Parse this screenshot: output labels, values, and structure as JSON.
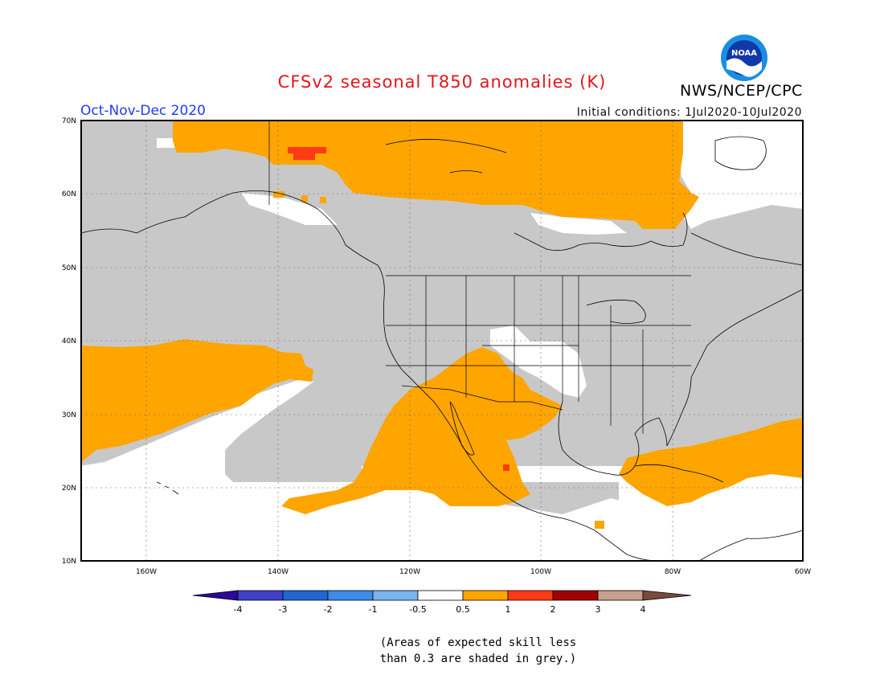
{
  "header": {
    "title": "CFSv2 seasonal T850 anomalies (K)",
    "season": "Oct-Nov-Dec 2020",
    "initial_conditions": "Initial conditions: 1Jul2020-10Jul2020",
    "agency": "NWS/NCEP/CPC",
    "logo_text": "NOAA"
  },
  "map": {
    "latitude_labels": [
      "70N",
      "60N",
      "50N",
      "40N",
      "30N",
      "20N",
      "10N"
    ],
    "longitude_labels": [
      "160W",
      "140W",
      "120W",
      "100W",
      "80W",
      "60W"
    ],
    "colors": {
      "grey_low_skill": "#c8c8c8",
      "neutral": "#ffffff",
      "warm_0_5_to_1": "#ffa500",
      "warm_1_to_2": "#ff3a14",
      "border": "#000000"
    }
  },
  "colorbar": {
    "labels": [
      "-4",
      "-3",
      "-2",
      "-1",
      "-0.5",
      "0.5",
      "1",
      "2",
      "3",
      "4"
    ],
    "colors": [
      "#2a0a98",
      "#4040c8",
      "#2066d0",
      "#3c8ce8",
      "#78b4f0",
      "#ffffff",
      "#ffa500",
      "#ff3a14",
      "#a00000",
      "#c8a090",
      "#7a4a3a"
    ]
  },
  "notes": {
    "line1": "(Areas of expected skill less",
    "line2": "than 0.3 are shaded in grey.)"
  }
}
